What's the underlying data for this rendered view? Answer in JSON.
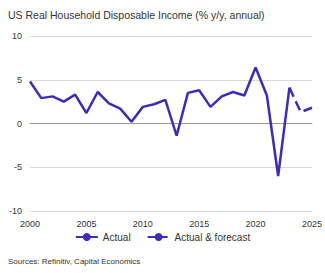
{
  "chart_data": {
    "type": "line",
    "title": "US Real Household Disposable Income (% y/y, annual)",
    "source": "Sources: Refinitiv, Capital Economics",
    "x": [
      2000,
      2001,
      2002,
      2003,
      2004,
      2005,
      2006,
      2007,
      2008,
      2009,
      2010,
      2011,
      2012,
      2013,
      2014,
      2015,
      2016,
      2017,
      2018,
      2019,
      2020,
      2021,
      2022,
      2023,
      2024,
      2025
    ],
    "series": [
      {
        "name": "Actual",
        "color": "#3d2db5",
        "line_style": "solid",
        "values": [
          4.8,
          2.9,
          3.1,
          2.5,
          3.3,
          1.2,
          3.6,
          2.3,
          1.7,
          0.2,
          1.9,
          2.2,
          2.7,
          -1.4,
          3.5,
          3.8,
          1.9,
          3.1,
          3.6,
          3.2,
          6.4,
          3.2,
          -6.0,
          4.1,
          null,
          null
        ]
      },
      {
        "name": "Actual & forecast",
        "color": "#3d2db5",
        "line_style": "dashed",
        "values": [
          null,
          null,
          null,
          null,
          null,
          null,
          null,
          null,
          null,
          null,
          null,
          null,
          null,
          null,
          null,
          null,
          null,
          null,
          null,
          null,
          null,
          null,
          null,
          4.1,
          1.3,
          1.8
        ]
      }
    ],
    "xlim": [
      2000,
      2025
    ],
    "xticks": [
      2000,
      2005,
      2010,
      2015,
      2020,
      2025
    ],
    "ylim": [
      -10,
      10
    ],
    "yticks": [
      -10,
      -5,
      0,
      5,
      10
    ],
    "grid": true,
    "legend": "bottom"
  }
}
